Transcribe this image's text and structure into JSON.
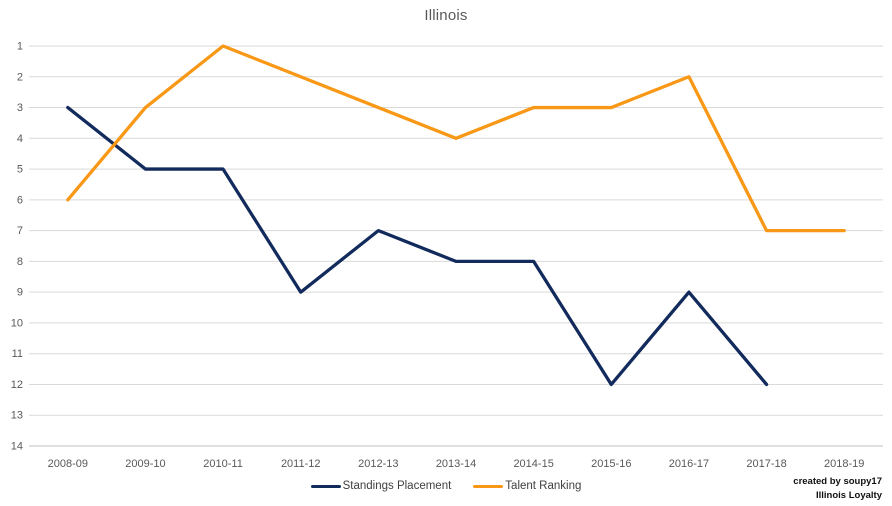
{
  "chart_data": {
    "type": "line",
    "title": "Illinois",
    "categories": [
      "2008-09",
      "2009-10",
      "2010-11",
      "2011-12",
      "2012-13",
      "2013-14",
      "2014-15",
      "2015-16",
      "2016-17",
      "2017-18",
      "2018-19"
    ],
    "series": [
      {
        "name": "Standings Placement",
        "color": "#122B5C",
        "values": [
          3,
          5,
          5,
          9,
          7,
          8,
          8,
          12,
          9,
          12,
          null
        ]
      },
      {
        "name": "Talent Ranking",
        "color": "#F89816",
        "values": [
          6,
          3,
          1,
          2,
          3,
          4,
          3,
          3,
          2,
          7,
          7
        ]
      }
    ],
    "y_axis": {
      "min": 1,
      "max": 14,
      "inverted": true,
      "ticks": [
        1,
        2,
        3,
        4,
        5,
        6,
        7,
        8,
        9,
        10,
        11,
        12,
        13,
        14
      ]
    },
    "xlabel": "",
    "ylabel": "",
    "grid": "horizontal",
    "legend_position": "bottom",
    "colors": {
      "gridline": "#D9D9D9",
      "axis_line": "#BFBFBF",
      "tick_label": "#595959",
      "title": "#595959"
    }
  },
  "credit": {
    "line1": "created by soupy17",
    "line2": "Illinois Loyalty"
  }
}
